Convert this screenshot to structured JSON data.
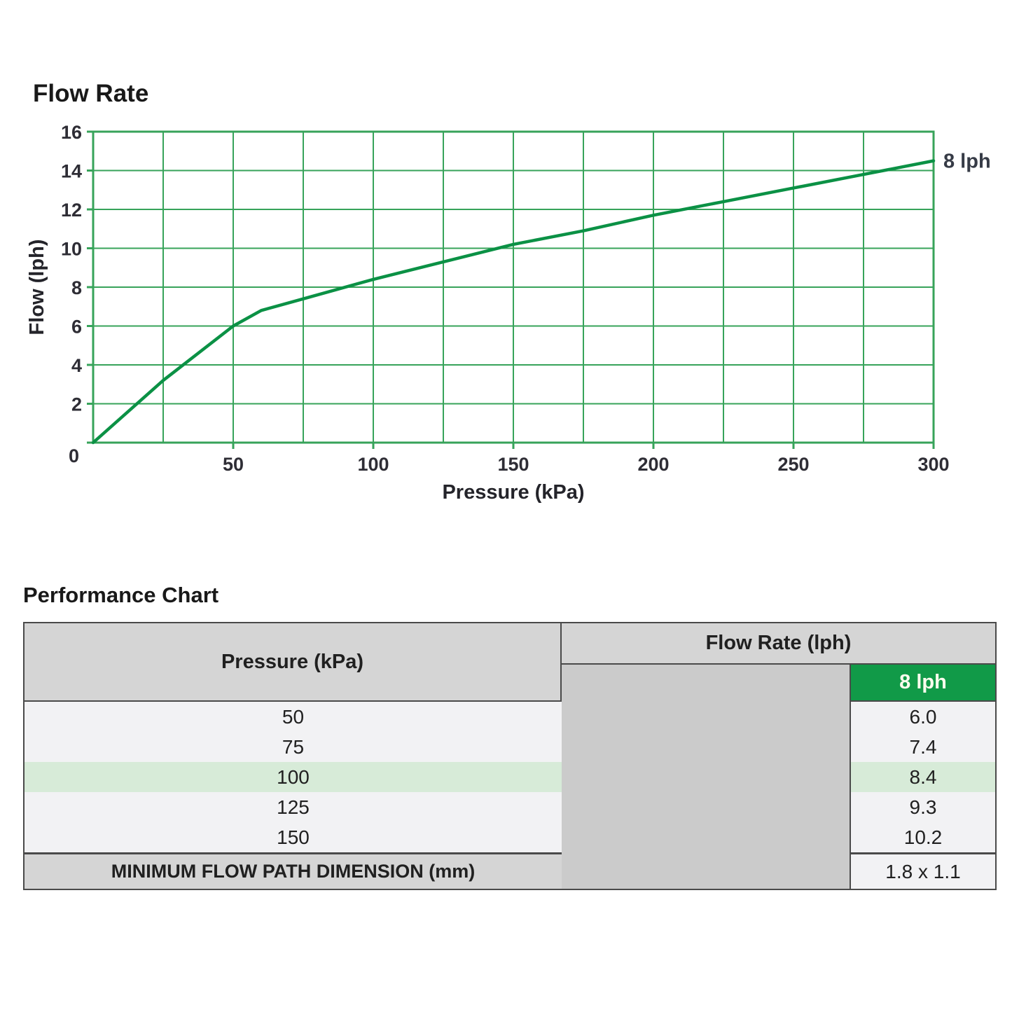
{
  "chart_data": {
    "type": "line",
    "title": "Flow Rate",
    "xlabel": "Pressure (kPa)",
    "ylabel": "Flow (lph)",
    "xlim": [
      0,
      300
    ],
    "ylim": [
      0,
      16
    ],
    "x_ticks": [
      0,
      50,
      100,
      150,
      200,
      250,
      300
    ],
    "y_ticks": [
      0,
      2,
      4,
      6,
      8,
      10,
      12,
      14,
      16
    ],
    "x_grid_step": 25,
    "y_grid_step": 2,
    "grid": true,
    "legend_position": "none",
    "annotation": {
      "text": "8 lph",
      "position": "right-end-of-line"
    },
    "series": [
      {
        "name": "8 lph",
        "x": [
          0,
          25,
          50,
          60,
          75,
          100,
          125,
          150,
          175,
          200,
          225,
          250,
          275,
          300
        ],
        "y": [
          0,
          3.2,
          6.0,
          6.8,
          7.4,
          8.4,
          9.3,
          10.2,
          10.9,
          11.7,
          12.4,
          13.1,
          13.8,
          14.5
        ]
      }
    ],
    "colors": {
      "grid": "#37a35a",
      "line": "#0b9145"
    }
  },
  "performance": {
    "title": "Performance Chart",
    "table": {
      "pressure_header": "Pressure (kPa)",
      "flow_group_header": "Flow Rate (lph)",
      "series_header": "8 lph",
      "rows": [
        {
          "pressure": "50",
          "flow": "6.0"
        },
        {
          "pressure": "75",
          "flow": "7.4"
        },
        {
          "pressure": "100",
          "flow": "8.4",
          "highlighted": true
        },
        {
          "pressure": "125",
          "flow": "9.3"
        },
        {
          "pressure": "150",
          "flow": "10.2"
        }
      ],
      "footer": {
        "label": "MINIMUM FLOW PATH DIMENSION (mm)",
        "value": "1.8 x 1.1"
      },
      "colors": {
        "header_bg": "#d5d5d5",
        "blank_bg": "#cbcbcb",
        "row_bg": "#f2f2f4",
        "highlight_bg": "#d7ebd8",
        "series_header_bg": "#119a48",
        "border": "#4a4a4a"
      }
    }
  }
}
